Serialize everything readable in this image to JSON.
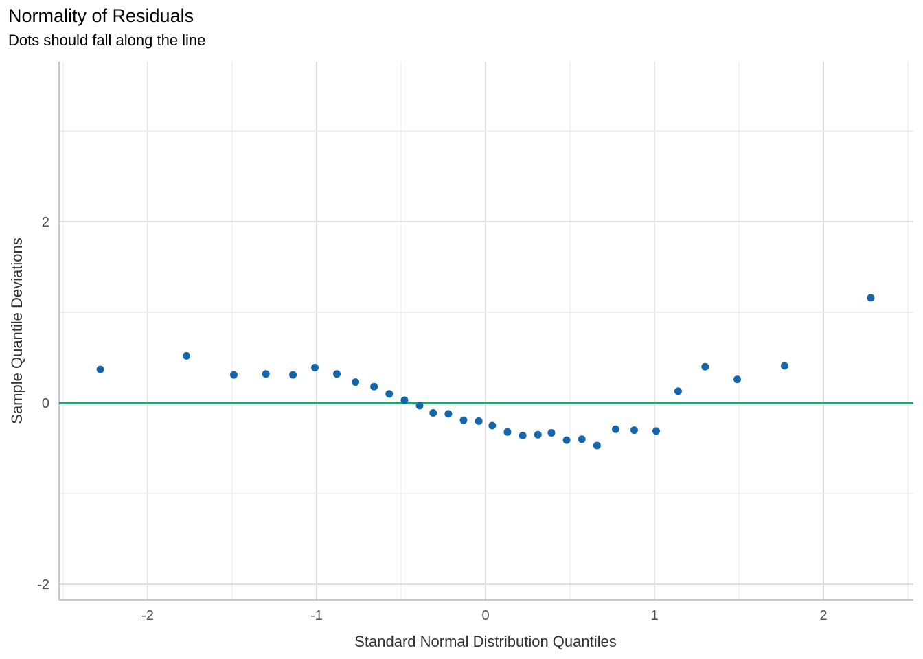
{
  "chart_data": {
    "type": "scatter",
    "title": "Normality of Residuals",
    "subtitle": "Dots should fall along the line",
    "xlabel": "Standard Normal Distribution Quantiles",
    "ylabel": "Sample Quantile Deviations",
    "xlim": [
      -2.5,
      2.5
    ],
    "ylim": [
      -2.1,
      3.7
    ],
    "x_ticks": [
      -2,
      -1,
      0,
      1,
      2
    ],
    "x_tick_labels": [
      "-2",
      "-1",
      "0",
      "1",
      "2"
    ],
    "y_ticks": [
      -2,
      0,
      2
    ],
    "y_tick_labels": [
      "-2",
      "0",
      "2"
    ],
    "grid": true,
    "reference_line": {
      "y": 0,
      "color": "#2e9e77"
    },
    "point_color": "#1566a8",
    "points": {
      "x": [
        -2.28,
        -1.77,
        -1.49,
        -1.3,
        -1.14,
        -1.01,
        -0.88,
        -0.77,
        -0.66,
        -0.57,
        -0.48,
        -0.39,
        -0.31,
        -0.22,
        -0.13,
        -0.04,
        0.04,
        0.13,
        0.22,
        0.31,
        0.39,
        0.48,
        0.57,
        0.66,
        0.77,
        0.88,
        1.01,
        1.14,
        1.3,
        1.49,
        1.77,
        2.28
      ],
      "y": [
        0.37,
        0.52,
        0.31,
        0.32,
        0.31,
        0.39,
        0.32,
        0.23,
        0.18,
        0.1,
        0.03,
        -0.03,
        -0.11,
        -0.12,
        -0.19,
        -0.2,
        -0.25,
        -0.32,
        -0.36,
        -0.35,
        -0.33,
        -0.41,
        -0.4,
        -0.47,
        -0.29,
        -0.3,
        -0.31,
        0.13,
        0.4,
        0.26,
        0.41,
        1.16
      ]
    }
  }
}
